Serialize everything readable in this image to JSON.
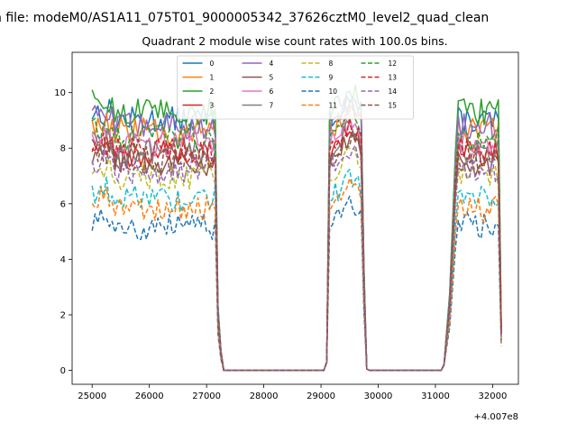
{
  "chart_data": {
    "type": "line",
    "suptitle": "n file: modeM0/AS1A11_075T01_9000005342_37626cztM0_level2_quad_clean",
    "title": "Quadrant 2 module wise count rates with 100.0s bins.",
    "xlabel": "",
    "ylabel": "",
    "x_offset_label": "+4.007e8",
    "xlim": [
      24650,
      32450
    ],
    "ylim": [
      -0.5,
      11.45
    ],
    "xticks": [
      25000,
      26000,
      27000,
      28000,
      29000,
      30000,
      31000,
      32000
    ],
    "xtick_labels": [
      "25000",
      "26000",
      "27000",
      "28000",
      "29000",
      "30000",
      "31000",
      "32000"
    ],
    "yticks": [
      0,
      2,
      4,
      6,
      8,
      10
    ],
    "ytick_labels": [
      "0",
      "2",
      "4",
      "6",
      "8",
      "10"
    ],
    "grid": false,
    "legend": {
      "placement": "top-center",
      "columns": 4
    },
    "segments": [
      {
        "start": 25000,
        "ramp_down": [
          27200,
          27250,
          27300
        ],
        "zero_from": 27350
      },
      {
        "rise_at": 29100,
        "start": 29150,
        "ramp_down": [
          29750,
          29800
        ],
        "zero_from": 29850
      },
      {
        "rise_at": 31150,
        "ramp_up": [
          31250,
          31350
        ],
        "start": 31400,
        "end": 32100
      }
    ],
    "series": [
      {
        "name": "0",
        "color": "#1f77b4",
        "dash": false,
        "level": 9.0
      },
      {
        "name": "1",
        "color": "#ff7f0e",
        "dash": false,
        "level": 8.6
      },
      {
        "name": "2",
        "color": "#2ca02c",
        "dash": false,
        "level": 9.3
      },
      {
        "name": "3",
        "color": "#d62728",
        "dash": false,
        "level": 7.8
      },
      {
        "name": "4",
        "color": "#9467bd",
        "dash": false,
        "level": 8.8
      },
      {
        "name": "5",
        "color": "#8c564b",
        "dash": false,
        "level": 7.5
      },
      {
        "name": "6",
        "color": "#e377c2",
        "dash": false,
        "level": 8.2
      },
      {
        "name": "7",
        "color": "#7f7f7f",
        "dash": false,
        "level": 7.9
      },
      {
        "name": "8",
        "color": "#bcbd22",
        "dash": true,
        "level": 7.0
      },
      {
        "name": "9",
        "color": "#17becf",
        "dash": true,
        "level": 6.2
      },
      {
        "name": "10",
        "color": "#1f77b4",
        "dash": true,
        "level": 5.2
      },
      {
        "name": "11",
        "color": "#ff7f0e",
        "dash": true,
        "level": 5.8
      },
      {
        "name": "12",
        "color": "#2ca02c",
        "dash": true,
        "level": 8.4
      },
      {
        "name": "13",
        "color": "#d62728",
        "dash": true,
        "level": 7.9
      },
      {
        "name": "14",
        "color": "#9467bd",
        "dash": true,
        "level": 7.2
      },
      {
        "name": "15",
        "color": "#8c564b",
        "dash": true,
        "level": 7.6
      }
    ]
  }
}
